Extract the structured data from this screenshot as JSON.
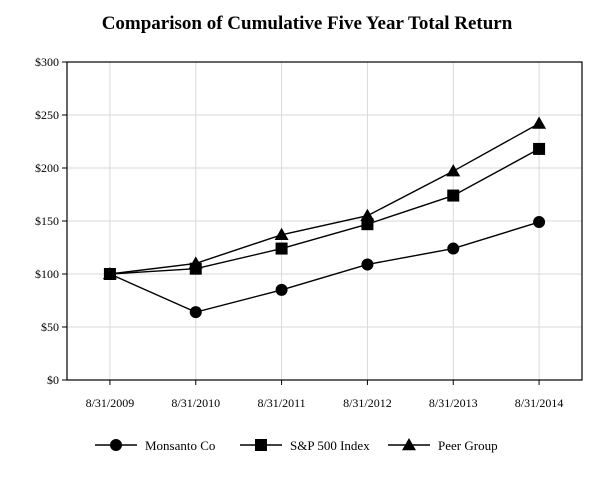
{
  "chart_data": {
    "type": "line",
    "title": "Comparison of Cumulative Five Year Total Return",
    "xlabel": "",
    "ylabel": "",
    "categories": [
      "8/31/2009",
      "8/31/2010",
      "8/31/2011",
      "8/31/2012",
      "8/31/2013",
      "8/31/2014"
    ],
    "yticks": [
      "$0",
      "$50",
      "$100",
      "$150",
      "$200",
      "$250",
      "$300"
    ],
    "ylim": [
      0,
      300
    ],
    "grid": true,
    "legend_position": "bottom",
    "series": [
      {
        "name": "Monsanto Co",
        "marker": "circle",
        "values": [
          100,
          64,
          85,
          109,
          124,
          149
        ]
      },
      {
        "name": "S&P 500 Index",
        "marker": "square",
        "values": [
          100,
          105,
          124,
          147,
          174,
          218
        ]
      },
      {
        "name": "Peer Group",
        "marker": "triangle",
        "values": [
          100,
          110,
          137,
          155,
          197,
          242
        ]
      }
    ],
    "colors": {
      "line": "#000000",
      "grid": "#d9d9d9",
      "frame": "#000000"
    }
  }
}
